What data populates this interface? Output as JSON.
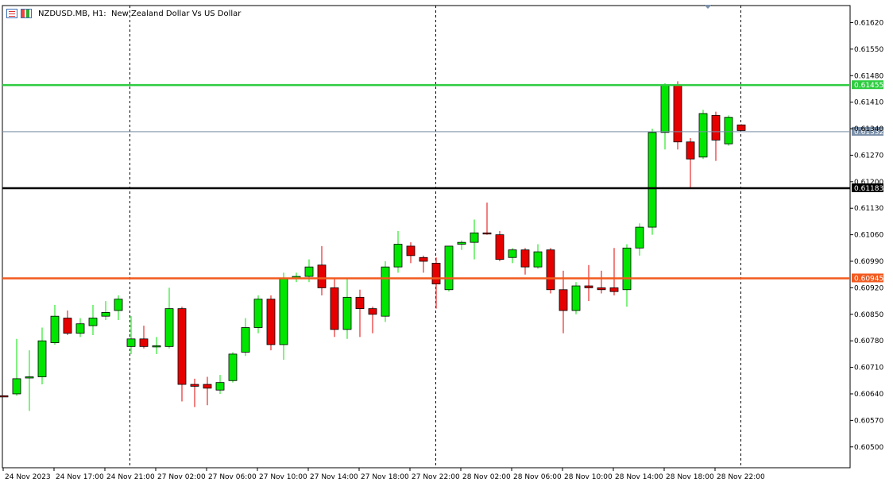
{
  "window": {
    "title": "NZDUSD.MB, H1:  New Zealand Dollar Vs US Dollar",
    "menu_icon": "window-menu-icon",
    "chart_icon": "chart-type-icon"
  },
  "colors": {
    "bull": "#00e600",
    "bear": "#e60000",
    "green_level": "#2ecc40",
    "current_level": "#7a8fa8",
    "black_level": "#000000",
    "orange_level": "#f25a1f",
    "separator": "#000000"
  },
  "chart_data": {
    "type": "candlestick",
    "title": "",
    "xlabel": "",
    "ylabel": "",
    "ylim": [
      0.60445,
      0.61665
    ],
    "grid": false,
    "y_ticks": [
      "0.61620",
      "0.61550",
      "0.61480",
      "0.61410",
      "0.61340",
      "0.61270",
      "0.61200",
      "0.61130",
      "0.61060",
      "0.60990",
      "0.60920",
      "0.60850",
      "0.60780",
      "0.60710",
      "0.60640",
      "0.60570",
      "0.60500"
    ],
    "x_labels": [
      "24 Nov 2023",
      "24 Nov 17:00",
      "24 Nov 21:00",
      "27 Nov 02:00",
      "27 Nov 06:00",
      "27 Nov 10:00",
      "27 Nov 14:00",
      "27 Nov 18:00",
      "27 Nov 22:00",
      "28 Nov 02:00",
      "28 Nov 06:00",
      "28 Nov 10:00",
      "28 Nov 14:00",
      "28 Nov 18:00",
      "28 Nov 22:00"
    ],
    "session_separators": [
      "24 Nov 21:00",
      "27 Nov 22:00",
      "28 Nov 22:00"
    ],
    "levels": [
      {
        "price": 0.61455,
        "label": "0.61455",
        "role": "green"
      },
      {
        "price": 0.61332,
        "label": "0.61332",
        "role": "current"
      },
      {
        "price": 0.61183,
        "label": "0.61183",
        "role": "black"
      },
      {
        "price": 0.60945,
        "label": "0.60945",
        "role": "orange"
      }
    ],
    "candles": [
      {
        "o": 0.60635,
        "h": 0.60636,
        "l": 0.60632,
        "c": 0.60634
      },
      {
        "o": 0.6064,
        "h": 0.60785,
        "l": 0.60635,
        "c": 0.6068
      },
      {
        "o": 0.60685,
        "h": 0.60755,
        "l": 0.60595,
        "c": 0.60685
      },
      {
        "o": 0.60685,
        "h": 0.60815,
        "l": 0.60665,
        "c": 0.6078
      },
      {
        "o": 0.60775,
        "h": 0.60875,
        "l": 0.6077,
        "c": 0.60845
      },
      {
        "o": 0.6084,
        "h": 0.6086,
        "l": 0.60795,
        "c": 0.608
      },
      {
        "o": 0.608,
        "h": 0.6084,
        "l": 0.6079,
        "c": 0.60825
      },
      {
        "o": 0.6082,
        "h": 0.60875,
        "l": 0.60795,
        "c": 0.6084
      },
      {
        "o": 0.60845,
        "h": 0.60885,
        "l": 0.60835,
        "c": 0.60855
      },
      {
        "o": 0.6086,
        "h": 0.609,
        "l": 0.60835,
        "c": 0.6089
      },
      {
        "o": 0.60765,
        "h": 0.60845,
        "l": 0.60745,
        "c": 0.60785
      },
      {
        "o": 0.60785,
        "h": 0.6082,
        "l": 0.6076,
        "c": 0.60765
      },
      {
        "o": 0.60765,
        "h": 0.6079,
        "l": 0.60745,
        "c": 0.60767
      },
      {
        "o": 0.60765,
        "h": 0.6092,
        "l": 0.6076,
        "c": 0.60865
      },
      {
        "o": 0.60865,
        "h": 0.6087,
        "l": 0.6062,
        "c": 0.60665
      },
      {
        "o": 0.60665,
        "h": 0.6068,
        "l": 0.60605,
        "c": 0.6066
      },
      {
        "o": 0.60665,
        "h": 0.60685,
        "l": 0.6061,
        "c": 0.60655
      },
      {
        "o": 0.6065,
        "h": 0.6069,
        "l": 0.6064,
        "c": 0.6067
      },
      {
        "o": 0.60675,
        "h": 0.6075,
        "l": 0.6067,
        "c": 0.60745
      },
      {
        "o": 0.6075,
        "h": 0.6084,
        "l": 0.6074,
        "c": 0.60815
      },
      {
        "o": 0.60815,
        "h": 0.609,
        "l": 0.608,
        "c": 0.6089
      },
      {
        "o": 0.6089,
        "h": 0.609,
        "l": 0.60755,
        "c": 0.6077
      },
      {
        "o": 0.6077,
        "h": 0.6096,
        "l": 0.6073,
        "c": 0.60945
      },
      {
        "o": 0.60945,
        "h": 0.6096,
        "l": 0.60935,
        "c": 0.6095
      },
      {
        "o": 0.6095,
        "h": 0.60995,
        "l": 0.60935,
        "c": 0.60975
      },
      {
        "o": 0.6098,
        "h": 0.6103,
        "l": 0.609,
        "c": 0.6092
      },
      {
        "o": 0.6092,
        "h": 0.60945,
        "l": 0.6079,
        "c": 0.6081
      },
      {
        "o": 0.6081,
        "h": 0.60945,
        "l": 0.60785,
        "c": 0.60895
      },
      {
        "o": 0.60895,
        "h": 0.60915,
        "l": 0.6079,
        "c": 0.60865
      },
      {
        "o": 0.60865,
        "h": 0.6087,
        "l": 0.608,
        "c": 0.6085
      },
      {
        "o": 0.60845,
        "h": 0.6099,
        "l": 0.6083,
        "c": 0.60975
      },
      {
        "o": 0.60975,
        "h": 0.6107,
        "l": 0.6096,
        "c": 0.61035
      },
      {
        "o": 0.6103,
        "h": 0.6104,
        "l": 0.60985,
        "c": 0.61005
      },
      {
        "o": 0.61,
        "h": 0.61005,
        "l": 0.6096,
        "c": 0.6099
      },
      {
        "o": 0.60985,
        "h": 0.61,
        "l": 0.60865,
        "c": 0.6093
      },
      {
        "o": 0.60915,
        "h": 0.6103,
        "l": 0.6091,
        "c": 0.6103
      },
      {
        "o": 0.61035,
        "h": 0.61045,
        "l": 0.6102,
        "c": 0.6104
      },
      {
        "o": 0.6104,
        "h": 0.611,
        "l": 0.60995,
        "c": 0.61065
      },
      {
        "o": 0.61065,
        "h": 0.61145,
        "l": 0.6106,
        "c": 0.61062
      },
      {
        "o": 0.6106,
        "h": 0.6107,
        "l": 0.6099,
        "c": 0.60995
      },
      {
        "o": 0.61,
        "h": 0.61025,
        "l": 0.60985,
        "c": 0.6102
      },
      {
        "o": 0.6102,
        "h": 0.61025,
        "l": 0.60955,
        "c": 0.60975
      },
      {
        "o": 0.60975,
        "h": 0.61035,
        "l": 0.6097,
        "c": 0.61015
      },
      {
        "o": 0.6102,
        "h": 0.61025,
        "l": 0.60905,
        "c": 0.60915
      },
      {
        "o": 0.60915,
        "h": 0.60965,
        "l": 0.608,
        "c": 0.6086
      },
      {
        "o": 0.6086,
        "h": 0.60935,
        "l": 0.6085,
        "c": 0.60925
      },
      {
        "o": 0.60925,
        "h": 0.6098,
        "l": 0.60885,
        "c": 0.6092
      },
      {
        "o": 0.6092,
        "h": 0.60965,
        "l": 0.60905,
        "c": 0.60915
      },
      {
        "o": 0.6092,
        "h": 0.61025,
        "l": 0.609,
        "c": 0.6091
      },
      {
        "o": 0.60915,
        "h": 0.61035,
        "l": 0.6087,
        "c": 0.61025
      },
      {
        "o": 0.61025,
        "h": 0.6109,
        "l": 0.61005,
        "c": 0.6108
      },
      {
        "o": 0.6108,
        "h": 0.6134,
        "l": 0.6106,
        "c": 0.6133
      },
      {
        "o": 0.6133,
        "h": 0.6146,
        "l": 0.61285,
        "c": 0.61455
      },
      {
        "o": 0.61455,
        "h": 0.61465,
        "l": 0.61285,
        "c": 0.61305
      },
      {
        "o": 0.61305,
        "h": 0.61315,
        "l": 0.61185,
        "c": 0.6126
      },
      {
        "o": 0.61265,
        "h": 0.6139,
        "l": 0.6126,
        "c": 0.6138
      },
      {
        "o": 0.61375,
        "h": 0.61385,
        "l": 0.61255,
        "c": 0.6131
      },
      {
        "o": 0.613,
        "h": 0.61375,
        "l": 0.61295,
        "c": 0.6137
      },
      {
        "o": 0.6135,
        "h": 0.61352,
        "l": 0.61335,
        "c": 0.61335
      }
    ]
  }
}
